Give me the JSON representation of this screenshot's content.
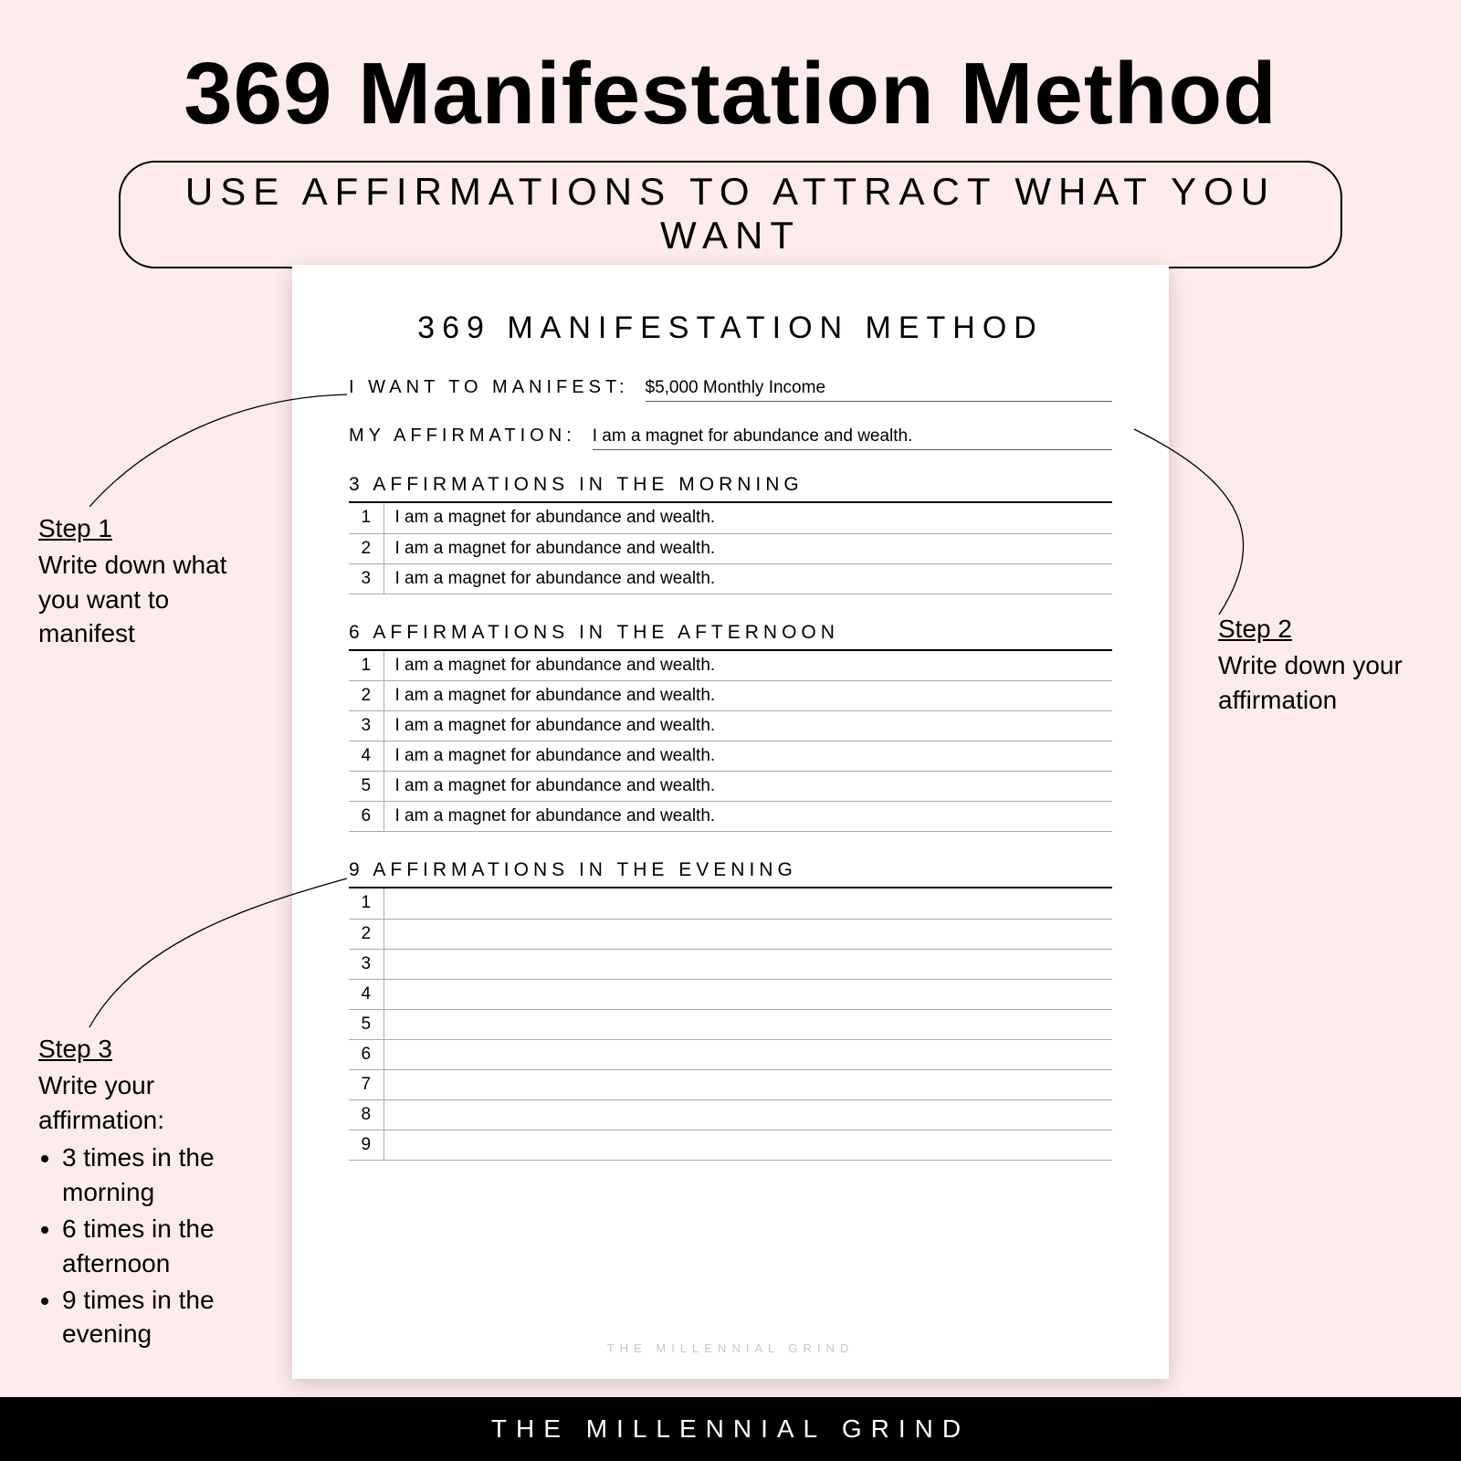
{
  "colors": {
    "page_bg": "#fdeceb",
    "sheet_bg": "#ffffff",
    "text": "#000000",
    "rule": "#aaaaaa",
    "strong_rule": "#000000",
    "footer_bar_bg": "#000000",
    "footer_bar_text": "#ffffff",
    "watermark": "#c8c8c8"
  },
  "header": {
    "title": "369 Manifestation Method",
    "subtitle": "USE AFFIRMATIONS TO ATTRACT WHAT YOU WANT"
  },
  "worksheet": {
    "title": "369 MANIFESTATION METHOD",
    "manifest_label": "I WANT TO MANIFEST:",
    "manifest_value": "$5,000 Monthly Income",
    "affirmation_label": "MY AFFIRMATION:",
    "affirmation_value": "I am a magnet for abundance and wealth.",
    "sections": [
      {
        "heading": "3 AFFIRMATIONS IN THE MORNING",
        "count": 3,
        "lines": [
          "I am a magnet for abundance and wealth.",
          "I am a magnet for abundance and wealth.",
          "I am a magnet for abundance and wealth."
        ]
      },
      {
        "heading": "6 AFFIRMATIONS IN THE AFTERNOON",
        "count": 6,
        "lines": [
          "I am a magnet for abundance and wealth.",
          "I am a magnet for abundance and wealth.",
          "I am a magnet for abundance and wealth.",
          "I am a magnet for abundance and wealth.",
          "I am a magnet for abundance and wealth.",
          "I am a magnet for abundance and wealth."
        ]
      },
      {
        "heading": "9 AFFIRMATIONS IN THE EVENING",
        "count": 9,
        "lines": [
          "",
          "",
          "",
          "",
          "",
          "",
          "",
          "",
          ""
        ]
      }
    ],
    "watermark": "THE MILLENNIAL GRIND"
  },
  "callouts": {
    "step1": {
      "title": "Step 1",
      "body": "Write down what you want to manifest"
    },
    "step2": {
      "title": "Step 2",
      "body": "Write down your affirmation"
    },
    "step3": {
      "title": "Step 3",
      "body": "Write your affirmation:",
      "bullets": [
        "3 times in the morning",
        "6 times in the afternoon",
        "9 times in the evening"
      ]
    }
  },
  "footer": "THE MILLENNIAL GRIND"
}
